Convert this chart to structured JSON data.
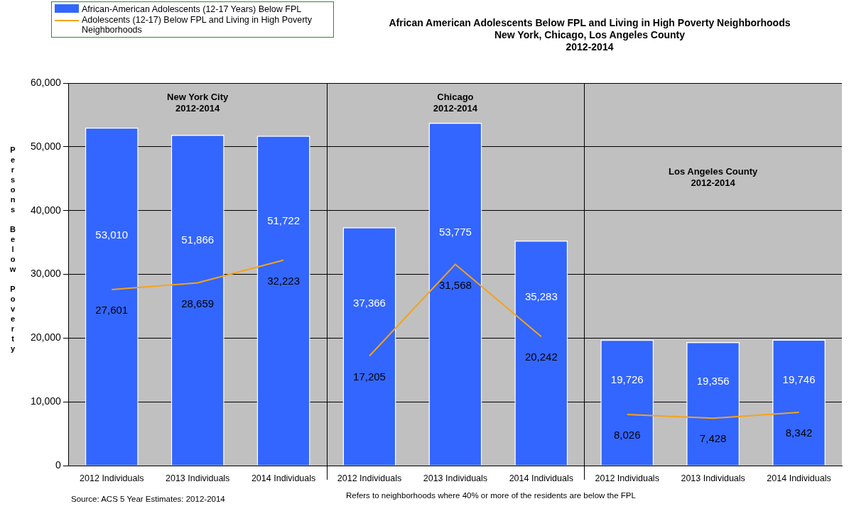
{
  "chart_data": {
    "type": "bar",
    "title": "African American Adolescents Below FPL and Living in High Poverty Neighborhoods\nNew York, Chicago, Los Angeles County\n2012-2014",
    "ylabel": "Persons Below Poverty",
    "categories": [
      "2012 Individuals",
      "2013 Individuals",
      "2014 Individuals",
      "2012 Individuals",
      "2013 Individuals",
      "2014 Individuals",
      "2012 Individuals",
      "2013 Individuals",
      "2014 Individuals"
    ],
    "series": [
      {
        "name": "African-American Adolescents (12-17 Years) Below FPL",
        "color": "#3366ff",
        "values": [
          53010,
          51866,
          51722,
          37366,
          53775,
          35283,
          19726,
          19356,
          19746
        ],
        "value_labels": [
          "53,010",
          "51,866",
          "51,722",
          "37,366",
          "53,775",
          "35,283",
          "19,726",
          "19,356",
          "19,746"
        ]
      },
      {
        "name": "Adolescents (12-17) Below FPL and Living in High Poverty Neighborhoods",
        "type": "line",
        "color": "#f5a31a",
        "values": [
          27601,
          28659,
          32223,
          null,
          null,
          null,
          null,
          null,
          null
        ],
        "value_labels": [
          "27,601",
          "28,659",
          "32,223",
          null,
          null,
          null,
          null,
          null,
          null
        ]
      },
      {
        "type": "line",
        "color": "#f5a31a",
        "values": [
          null,
          null,
          null,
          17205,
          31568,
          20242,
          null,
          null,
          null
        ],
        "value_labels": [
          null,
          null,
          null,
          "17,205",
          "31,568",
          "20,242",
          null,
          null,
          null
        ]
      },
      {
        "type": "line",
        "color": "#f5a31a",
        "values": [
          null,
          null,
          null,
          null,
          null,
          null,
          8026,
          7428,
          8342
        ],
        "value_labels": [
          null,
          null,
          null,
          null,
          null,
          null,
          "8,026",
          "7,428",
          "8,342"
        ]
      }
    ],
    "ylim": [
      0,
      60000
    ],
    "yticks": [
      {
        "value": 0,
        "label": "0"
      },
      {
        "value": 10000,
        "label": "10,000"
      },
      {
        "value": 20000,
        "label": "20,000"
      },
      {
        "value": 30000,
        "label": "30,000"
      },
      {
        "value": 40000,
        "label": "40,000"
      },
      {
        "value": 50000,
        "label": "50,000"
      },
      {
        "value": 60000,
        "label": "60,000"
      }
    ],
    "grid": "y",
    "legend": "top left",
    "marker": "none",
    "annotations": [
      "New York City\n2012-2014",
      "Chicago\n2012-2014",
      "Los Angeles County\n2012-2014",
      "Source: ACS 5 Year Estimates: 2012-2014",
      "Refers to neighborhoods where 40% or more of the residents are below the FPL"
    ]
  }
}
